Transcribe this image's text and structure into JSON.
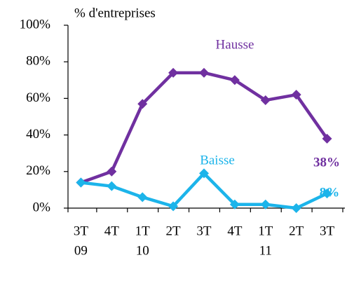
{
  "chart_data": {
    "type": "line",
    "title": "% d'entreprises",
    "categories": [
      [
        "3T",
        "09"
      ],
      [
        "4T"
      ],
      [
        "1T",
        "10"
      ],
      [
        "2T"
      ],
      [
        "3T"
      ],
      [
        "4T"
      ],
      [
        "1T",
        "11"
      ],
      [
        "2T"
      ],
      [
        "3T"
      ]
    ],
    "series": [
      {
        "name": "Hausse",
        "color": "#7030a0",
        "values": [
          14,
          20,
          57,
          74,
          74,
          70,
          59,
          62,
          38
        ],
        "value_labels": [
          null,
          null,
          null,
          null,
          null,
          null,
          null,
          null,
          "38%"
        ]
      },
      {
        "name": "Baisse",
        "color": "#1cb4ea",
        "values": [
          14,
          12,
          6,
          1,
          19,
          2,
          2,
          0,
          8
        ],
        "value_labels": [
          null,
          null,
          null,
          null,
          null,
          null,
          null,
          null,
          "8%"
        ]
      }
    ],
    "ylim": [
      0,
      100
    ],
    "yticks": [
      {
        "value": 0,
        "label": "0%"
      },
      {
        "value": 20,
        "label": "20%"
      },
      {
        "value": 40,
        "label": "40%"
      },
      {
        "value": 60,
        "label": "60%"
      },
      {
        "value": 80,
        "label": "80%"
      },
      {
        "value": 100,
        "label": "100%"
      }
    ],
    "grid": false
  }
}
